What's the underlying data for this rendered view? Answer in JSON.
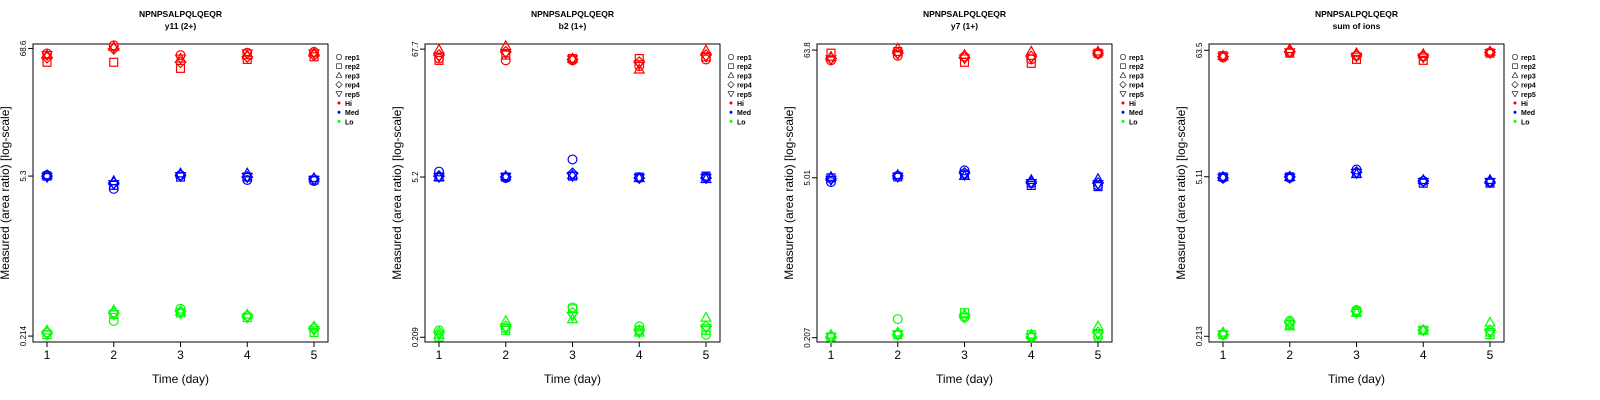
{
  "charts": [
    {
      "title": "NPNPSALPQLQEQR",
      "subtitle": "y11 (2+)",
      "xlabel": "Time (day)",
      "ylabel": "Measured (area ratio) [log-scale]",
      "x_ticks": [
        "1",
        "2",
        "3",
        "4",
        "5"
      ],
      "y_ticks": [
        "0.214",
        "5.3",
        "68.6"
      ]
    },
    {
      "title": "NPNPSALPQLQEQR",
      "subtitle": "b2 (1+)",
      "xlabel": "Time (day)",
      "ylabel": "Measured (area ratio) [log-scale]",
      "x_ticks": [
        "1",
        "2",
        "3",
        "4",
        "5"
      ],
      "y_ticks": [
        "0.209",
        "5.2",
        "67.7"
      ]
    },
    {
      "title": "NPNPSALPQLQEQR",
      "subtitle": "y7 (1+)",
      "xlabel": "Time (day)",
      "ylabel": "Measured (area ratio) [log-scale]",
      "x_ticks": [
        "1",
        "2",
        "3",
        "4",
        "5"
      ],
      "y_ticks": [
        "0.207",
        "5.01",
        "63.8"
      ]
    },
    {
      "title": "NPNPSALPQLQEQR",
      "subtitle": "sum of ions",
      "xlabel": "Time (day)",
      "ylabel": "Measured (area ratio) [log-scale]",
      "x_ticks": [
        "1",
        "2",
        "3",
        "4",
        "5"
      ],
      "y_ticks": [
        "0.213",
        "5.11",
        "63.5"
      ]
    }
  ],
  "legend": {
    "reps": [
      {
        "label": "rep1",
        "shape": "circle"
      },
      {
        "label": "rep2",
        "shape": "square"
      },
      {
        "label": "rep3",
        "shape": "triangle-up"
      },
      {
        "label": "rep4",
        "shape": "diamond"
      },
      {
        "label": "rep5",
        "shape": "triangle-down"
      }
    ],
    "levels": [
      {
        "label": "Hi",
        "color": "#ff0000"
      },
      {
        "label": "Med",
        "color": "#0000ff"
      },
      {
        "label": "Lo",
        "color": "#00ff00"
      }
    ]
  },
  "chart_data": [
    {
      "type": "scatter",
      "title": "NPNPSALPQLQEQR",
      "subtitle": "y11 (2+)",
      "xlabel": "Time (day)",
      "ylabel": "Measured (area ratio) [log-scale]",
      "log_y": true,
      "x": [
        1,
        2,
        3,
        4,
        5
      ],
      "ylim": [
        0.19,
        75
      ],
      "legend_position": "right",
      "series": [
        {
          "name": "Hi",
          "color": "#ff0000",
          "reps": [
            [
              62,
              73,
              60,
              63,
              64
            ],
            [
              52,
              52,
              46,
              55,
              58
            ],
            [
              60,
              71,
              56,
              60,
              63
            ],
            [
              57,
              68,
              52,
              58,
              60
            ],
            [
              60,
              70,
              56,
              62,
              62
            ]
          ]
        },
        {
          "name": "Med",
          "color": "#0000ff",
          "reps": [
            [
              5.4,
              4.1,
              5.4,
              4.9,
              4.8
            ],
            [
              5.3,
              4.4,
              5.2,
              5.2,
              4.9
            ],
            [
              5.4,
              4.8,
              5.6,
              5.6,
              5.1
            ],
            [
              5.3,
              4.6,
              5.4,
              5.2,
              5.0
            ],
            [
              5.2,
              4.5,
              5.3,
              5.2,
              4.9
            ]
          ]
        },
        {
          "name": "Lo",
          "color": "#00ff00",
          "reps": [
            [
              0.23,
              0.29,
              0.37,
              0.32,
              0.25
            ],
            [
              0.22,
              0.33,
              0.34,
              0.31,
              0.23
            ],
            [
              0.24,
              0.36,
              0.35,
              0.33,
              0.26
            ],
            [
              0.23,
              0.34,
              0.35,
              0.32,
              0.25
            ],
            [
              0.22,
              0.33,
              0.34,
              0.31,
              0.24
            ]
          ]
        }
      ]
    },
    {
      "type": "scatter",
      "title": "NPNPSALPQLQEQR",
      "subtitle": "b2 (1+)",
      "xlabel": "Time (day)",
      "ylabel": "Measured (area ratio) [log-scale]",
      "log_y": true,
      "x": [
        1,
        2,
        3,
        4,
        5
      ],
      "ylim": [
        0.19,
        75
      ],
      "legend_position": "right",
      "series": [
        {
          "name": "Hi",
          "color": "#ff0000",
          "reps": [
            [
              56,
              54,
              54,
              48,
              55
            ],
            [
              54,
              60,
              56,
              56,
              58
            ],
            [
              67,
              72,
              56,
              45,
              66
            ],
            [
              60,
              64,
              55,
              52,
              60
            ],
            [
              58,
              62,
              55,
              50,
              58
            ]
          ]
        },
        {
          "name": "Med",
          "color": "#0000ff",
          "reps": [
            [
              5.8,
              5.1,
              7.4,
              5.1,
              5.2
            ],
            [
              5.2,
              5.2,
              5.3,
              5.2,
              5.3
            ],
            [
              5.2,
              5.3,
              5.4,
              5.1,
              5.0
            ],
            [
              5.3,
              5.2,
              5.6,
              5.1,
              5.1
            ],
            [
              5.2,
              5.2,
              5.3,
              5.1,
              5.1
            ]
          ]
        },
        {
          "name": "Lo",
          "color": "#00ff00",
          "reps": [
            [
              0.24,
              0.25,
              0.38,
              0.26,
              0.22
            ],
            [
              0.21,
              0.24,
              0.37,
              0.24,
              0.24
            ],
            [
              0.22,
              0.29,
              0.3,
              0.23,
              0.31
            ],
            [
              0.23,
              0.26,
              0.34,
              0.24,
              0.26
            ],
            [
              0.22,
              0.25,
              0.32,
              0.23,
              0.25
            ]
          ]
        }
      ]
    },
    {
      "type": "scatter",
      "title": "NPNPSALPQLQEQR",
      "subtitle": "y7 (1+)",
      "xlabel": "Time (day)",
      "ylabel": "Measured (area ratio) [log-scale]",
      "log_y": true,
      "x": [
        1,
        2,
        3,
        4,
        5
      ],
      "ylim": [
        0.19,
        72
      ],
      "legend_position": "right",
      "series": [
        {
          "name": "Hi",
          "color": "#ff0000",
          "reps": [
            [
              52,
              57,
              56,
              53,
              59
            ],
            [
              60,
              62,
              50,
              49,
              60
            ],
            [
              56,
              66,
              58,
              62,
              62
            ],
            [
              54,
              60,
              55,
              56,
              60
            ],
            [
              53,
              59,
              54,
              54,
              59
            ]
          ]
        },
        {
          "name": "Med",
          "color": "#0000ff",
          "reps": [
            [
              4.6,
              5.2,
              5.8,
              4.5,
              4.3
            ],
            [
              5.0,
              5.1,
              5.4,
              4.3,
              4.2
            ],
            [
              5.1,
              5.3,
              5.2,
              4.8,
              4.9
            ],
            [
              4.9,
              5.2,
              5.5,
              4.6,
              4.5
            ],
            [
              4.8,
              5.1,
              5.3,
              4.5,
              4.4
            ]
          ]
        },
        {
          "name": "Lo",
          "color": "#00ff00",
          "reps": [
            [
              0.21,
              0.3,
              0.31,
              0.21,
              0.21
            ],
            [
              0.21,
              0.22,
              0.34,
              0.22,
              0.22
            ],
            [
              0.22,
              0.23,
              0.33,
              0.22,
              0.26
            ],
            [
              0.21,
              0.22,
              0.32,
              0.21,
              0.23
            ],
            [
              0.21,
              0.22,
              0.31,
              0.21,
              0.22
            ]
          ]
        }
      ]
    },
    {
      "type": "scatter",
      "title": "NPNPSALPQLQEQR",
      "subtitle": "sum of ions",
      "xlabel": "Time (day)",
      "ylabel": "Measured (area ratio) [log-scale]",
      "log_y": true,
      "x": [
        1,
        2,
        3,
        4,
        5
      ],
      "ylim": [
        0.19,
        72
      ],
      "legend_position": "right",
      "series": [
        {
          "name": "Hi",
          "color": "#ff0000",
          "reps": [
            [
              55,
              61,
              57,
              56,
              61
            ],
            [
              57,
              60,
              53,
              52,
              60
            ],
            [
              57,
              65,
              60,
              59,
              62
            ],
            [
              56,
              62,
              58,
              57,
              61
            ],
            [
              56,
              61,
              56,
              55,
              60
            ]
          ]
        },
        {
          "name": "Med",
          "color": "#0000ff",
          "reps": [
            [
              5.0,
              5.0,
              5.9,
              4.7,
              4.6
            ],
            [
              5.1,
              5.1,
              5.5,
              4.5,
              4.5
            ],
            [
              5.1,
              5.1,
              5.4,
              4.8,
              4.8
            ],
            [
              5.0,
              5.1,
              5.6,
              4.7,
              4.6
            ],
            [
              5.0,
              5.0,
              5.5,
              4.6,
              4.6
            ]
          ]
        },
        {
          "name": "Lo",
          "color": "#00ff00",
          "reps": [
            [
              0.22,
              0.29,
              0.36,
              0.24,
              0.23
            ],
            [
              0.22,
              0.27,
              0.35,
              0.24,
              0.22
            ],
            [
              0.23,
              0.26,
              0.34,
              0.24,
              0.28
            ],
            [
              0.22,
              0.28,
              0.35,
              0.24,
              0.24
            ],
            [
              0.22,
              0.27,
              0.34,
              0.24,
              0.23
            ]
          ]
        }
      ]
    }
  ]
}
